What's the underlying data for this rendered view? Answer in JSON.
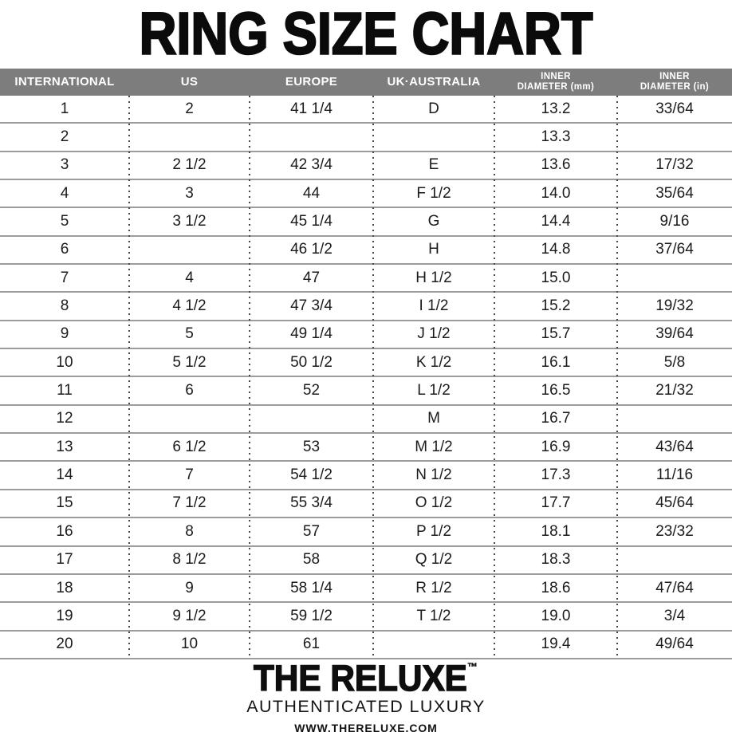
{
  "title": "RING SIZE CHART",
  "chart_data": {
    "type": "table",
    "title": "RING SIZE CHART",
    "columns": [
      {
        "key": "international",
        "label": "INTERNATIONAL",
        "lines": [
          "INTERNATIONAL"
        ]
      },
      {
        "key": "us",
        "label": "US",
        "lines": [
          "US"
        ]
      },
      {
        "key": "europe",
        "label": "EUROPE",
        "lines": [
          "EUROPE"
        ]
      },
      {
        "key": "uk-australia",
        "label": "UK·AUSTRALIA",
        "lines": [
          "UK·AUSTRALIA"
        ]
      },
      {
        "key": "inner-diameter-mm",
        "label": "INNER DIAMETER (mm)",
        "lines": [
          "INNER",
          "DIAMETER (mm)"
        ]
      },
      {
        "key": "inner-diameter-in",
        "label": "INNER DIAMETER (in)",
        "lines": [
          "INNER",
          "DIAMETER (in)"
        ]
      }
    ],
    "rows": [
      [
        "1",
        "2",
        "41 1/4",
        "D",
        "13.2",
        "33/64"
      ],
      [
        "2",
        "",
        "",
        "",
        "13.3",
        ""
      ],
      [
        "3",
        "2 1/2",
        "42 3/4",
        "E",
        "13.6",
        "17/32"
      ],
      [
        "4",
        "3",
        "44",
        "F 1/2",
        "14.0",
        "35/64"
      ],
      [
        "5",
        "3 1/2",
        "45 1/4",
        "G",
        "14.4",
        "9/16"
      ],
      [
        "6",
        "",
        "46 1/2",
        "H",
        "14.8",
        "37/64"
      ],
      [
        "7",
        "4",
        "47",
        "H 1/2",
        "15.0",
        ""
      ],
      [
        "8",
        "4 1/2",
        "47 3/4",
        "I 1/2",
        "15.2",
        "19/32"
      ],
      [
        "9",
        "5",
        "49 1/4",
        "J 1/2",
        "15.7",
        "39/64"
      ],
      [
        "10",
        "5 1/2",
        "50 1/2",
        "K 1/2",
        "16.1",
        "5/8"
      ],
      [
        "11",
        "6",
        "52",
        "L 1/2",
        "16.5",
        "21/32"
      ],
      [
        "12",
        "",
        "",
        "M",
        "16.7",
        ""
      ],
      [
        "13",
        "6 1/2",
        "53",
        "M 1/2",
        "16.9",
        "43/64"
      ],
      [
        "14",
        "7",
        "54 1/2",
        "N 1/2",
        "17.3",
        "11/16"
      ],
      [
        "15",
        "7 1/2",
        "55 3/4",
        "O 1/2",
        "17.7",
        "45/64"
      ],
      [
        "16",
        "8",
        "57",
        "P 1/2",
        "18.1",
        "23/32"
      ],
      [
        "17",
        "8 1/2",
        "58",
        "Q 1/2",
        "18.3",
        ""
      ],
      [
        "18",
        "9",
        "58 1/4",
        "R 1/2",
        "18.6",
        "47/64"
      ],
      [
        "19",
        "9 1/2",
        "59 1/2",
        "T 1/2",
        "19.0",
        "3/4"
      ],
      [
        "20",
        "10",
        "61",
        "",
        "19.4",
        "49/64"
      ]
    ]
  },
  "footer": {
    "brand": "THE RELUXE",
    "trademark": "™",
    "tagline": "AUTHENTICATED LUXURY",
    "website": "WWW.THERELUXE.COM"
  },
  "colors": {
    "header_bg": "#7d7d7d",
    "header_text": "#ffffff",
    "row_line": "#9c9c9c",
    "dotted_line": "#4a4a4a",
    "text": "#1b1b1b"
  }
}
